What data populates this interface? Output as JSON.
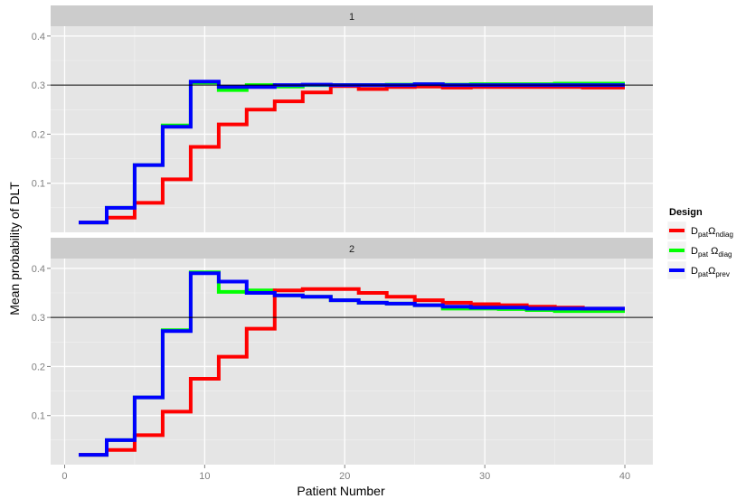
{
  "chart_data": {
    "type": "line",
    "step": true,
    "xlabel": "Patient Number",
    "ylabel": "Mean probability of DLT",
    "xlim": [
      -1,
      42
    ],
    "ylim": [
      0,
      0.42
    ],
    "xticks": [
      0,
      10,
      20,
      30,
      40
    ],
    "yticks": [
      0.1,
      0.2,
      0.3,
      0.4
    ],
    "reference_line": 0.3,
    "grid": true,
    "legend": {
      "title": "Design",
      "placement": "right",
      "entries": [
        {
          "base": "D",
          "sub1": "pat",
          "mid": "Ω",
          "sub2": "ndiag",
          "color": "#ff0000"
        },
        {
          "base": "D",
          "sub1": "pat",
          "mid": " Ω",
          "sub2": "diag",
          "color": "#00ff00"
        },
        {
          "base": "D",
          "sub1": "pat",
          "mid": "Ω",
          "sub2": "prev",
          "color": "#0000ff"
        }
      ]
    },
    "x": [
      1,
      3,
      5,
      7,
      9,
      11,
      13,
      15,
      17,
      19,
      21,
      23,
      25,
      27,
      29,
      31,
      33,
      35,
      37,
      40
    ],
    "panels": [
      {
        "label": "1",
        "series": [
          {
            "color": "#00ff00",
            "values": [
              0.02,
              0.05,
              0.137,
              0.218,
              0.305,
              0.29,
              0.3,
              0.297,
              0.3,
              0.3,
              0.3,
              0.301,
              0.302,
              0.301,
              0.302,
              0.302,
              0.302,
              0.303,
              0.303,
              0.303
            ]
          },
          {
            "color": "#ff0000",
            "values": [
              0.02,
              0.03,
              0.06,
              0.108,
              0.174,
              0.22,
              0.25,
              0.267,
              0.285,
              0.298,
              0.292,
              0.296,
              0.297,
              0.295,
              0.296,
              0.296,
              0.296,
              0.296,
              0.295,
              0.295
            ]
          },
          {
            "color": "#0000ff",
            "values": [
              0.02,
              0.05,
              0.137,
              0.215,
              0.307,
              0.296,
              0.296,
              0.3,
              0.301,
              0.3,
              0.3,
              0.3,
              0.302,
              0.3,
              0.3,
              0.3,
              0.3,
              0.3,
              0.3,
              0.3
            ]
          }
        ]
      },
      {
        "label": "2",
        "series": [
          {
            "color": "#00ff00",
            "values": [
              0.02,
              0.05,
              0.137,
              0.274,
              0.392,
              0.352,
              0.355,
              0.345,
              0.342,
              0.335,
              0.33,
              0.328,
              0.325,
              0.318,
              0.318,
              0.317,
              0.315,
              0.313,
              0.313,
              0.313
            ]
          },
          {
            "color": "#ff0000",
            "values": [
              0.02,
              0.03,
              0.06,
              0.108,
              0.175,
              0.22,
              0.277,
              0.355,
              0.358,
              0.358,
              0.35,
              0.342,
              0.335,
              0.33,
              0.327,
              0.325,
              0.322,
              0.32,
              0.318,
              0.318
            ]
          },
          {
            "color": "#0000ff",
            "values": [
              0.02,
              0.05,
              0.137,
              0.272,
              0.39,
              0.373,
              0.35,
              0.345,
              0.342,
              0.335,
              0.33,
              0.328,
              0.325,
              0.322,
              0.32,
              0.32,
              0.318,
              0.318,
              0.318,
              0.318
            ]
          }
        ]
      }
    ]
  }
}
